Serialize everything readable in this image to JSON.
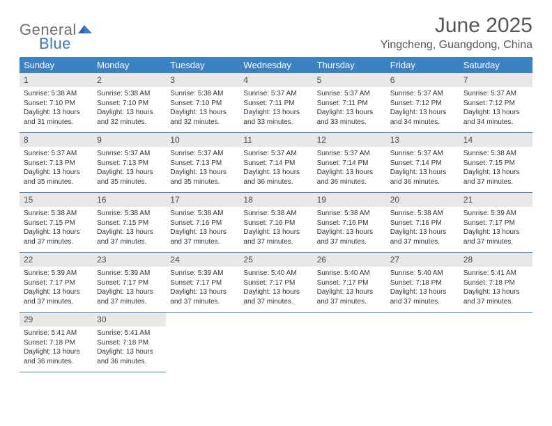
{
  "brand": {
    "part1": "General",
    "part2": "Blue"
  },
  "title": "June 2025",
  "subtitle": "Yingcheng, Guangdong, China",
  "colors": {
    "header_bg": "#3a82c4",
    "header_text": "#ffffff",
    "daynum_bg": "#e8e8e8",
    "border": "#3a82c4",
    "logo_gray": "#6d6d6d",
    "logo_blue": "#3a7bbf",
    "body_bg": "#ffffff",
    "text": "#333333"
  },
  "columns": [
    "Sunday",
    "Monday",
    "Tuesday",
    "Wednesday",
    "Thursday",
    "Friday",
    "Saturday"
  ],
  "weeks": [
    [
      {
        "n": "1",
        "sr": "5:38 AM",
        "ss": "7:10 PM",
        "dl": "13 hours and 31 minutes."
      },
      {
        "n": "2",
        "sr": "5:38 AM",
        "ss": "7:10 PM",
        "dl": "13 hours and 32 minutes."
      },
      {
        "n": "3",
        "sr": "5:38 AM",
        "ss": "7:10 PM",
        "dl": "13 hours and 32 minutes."
      },
      {
        "n": "4",
        "sr": "5:37 AM",
        "ss": "7:11 PM",
        "dl": "13 hours and 33 minutes."
      },
      {
        "n": "5",
        "sr": "5:37 AM",
        "ss": "7:11 PM",
        "dl": "13 hours and 33 minutes."
      },
      {
        "n": "6",
        "sr": "5:37 AM",
        "ss": "7:12 PM",
        "dl": "13 hours and 34 minutes."
      },
      {
        "n": "7",
        "sr": "5:37 AM",
        "ss": "7:12 PM",
        "dl": "13 hours and 34 minutes."
      }
    ],
    [
      {
        "n": "8",
        "sr": "5:37 AM",
        "ss": "7:13 PM",
        "dl": "13 hours and 35 minutes."
      },
      {
        "n": "9",
        "sr": "5:37 AM",
        "ss": "7:13 PM",
        "dl": "13 hours and 35 minutes."
      },
      {
        "n": "10",
        "sr": "5:37 AM",
        "ss": "7:13 PM",
        "dl": "13 hours and 35 minutes."
      },
      {
        "n": "11",
        "sr": "5:37 AM",
        "ss": "7:14 PM",
        "dl": "13 hours and 36 minutes."
      },
      {
        "n": "12",
        "sr": "5:37 AM",
        "ss": "7:14 PM",
        "dl": "13 hours and 36 minutes."
      },
      {
        "n": "13",
        "sr": "5:37 AM",
        "ss": "7:14 PM",
        "dl": "13 hours and 36 minutes."
      },
      {
        "n": "14",
        "sr": "5:38 AM",
        "ss": "7:15 PM",
        "dl": "13 hours and 37 minutes."
      }
    ],
    [
      {
        "n": "15",
        "sr": "5:38 AM",
        "ss": "7:15 PM",
        "dl": "13 hours and 37 minutes."
      },
      {
        "n": "16",
        "sr": "5:38 AM",
        "ss": "7:15 PM",
        "dl": "13 hours and 37 minutes."
      },
      {
        "n": "17",
        "sr": "5:38 AM",
        "ss": "7:16 PM",
        "dl": "13 hours and 37 minutes."
      },
      {
        "n": "18",
        "sr": "5:38 AM",
        "ss": "7:16 PM",
        "dl": "13 hours and 37 minutes."
      },
      {
        "n": "19",
        "sr": "5:38 AM",
        "ss": "7:16 PM",
        "dl": "13 hours and 37 minutes."
      },
      {
        "n": "20",
        "sr": "5:38 AM",
        "ss": "7:16 PM",
        "dl": "13 hours and 37 minutes."
      },
      {
        "n": "21",
        "sr": "5:39 AM",
        "ss": "7:17 PM",
        "dl": "13 hours and 37 minutes."
      }
    ],
    [
      {
        "n": "22",
        "sr": "5:39 AM",
        "ss": "7:17 PM",
        "dl": "13 hours and 37 minutes."
      },
      {
        "n": "23",
        "sr": "5:39 AM",
        "ss": "7:17 PM",
        "dl": "13 hours and 37 minutes."
      },
      {
        "n": "24",
        "sr": "5:39 AM",
        "ss": "7:17 PM",
        "dl": "13 hours and 37 minutes."
      },
      {
        "n": "25",
        "sr": "5:40 AM",
        "ss": "7:17 PM",
        "dl": "13 hours and 37 minutes."
      },
      {
        "n": "26",
        "sr": "5:40 AM",
        "ss": "7:17 PM",
        "dl": "13 hours and 37 minutes."
      },
      {
        "n": "27",
        "sr": "5:40 AM",
        "ss": "7:18 PM",
        "dl": "13 hours and 37 minutes."
      },
      {
        "n": "28",
        "sr": "5:41 AM",
        "ss": "7:18 PM",
        "dl": "13 hours and 37 minutes."
      }
    ],
    [
      {
        "n": "29",
        "sr": "5:41 AM",
        "ss": "7:18 PM",
        "dl": "13 hours and 36 minutes."
      },
      {
        "n": "30",
        "sr": "5:41 AM",
        "ss": "7:18 PM",
        "dl": "13 hours and 36 minutes."
      },
      null,
      null,
      null,
      null,
      null
    ]
  ],
  "labels": {
    "sunrise": "Sunrise:",
    "sunset": "Sunset:",
    "daylight": "Daylight:"
  }
}
